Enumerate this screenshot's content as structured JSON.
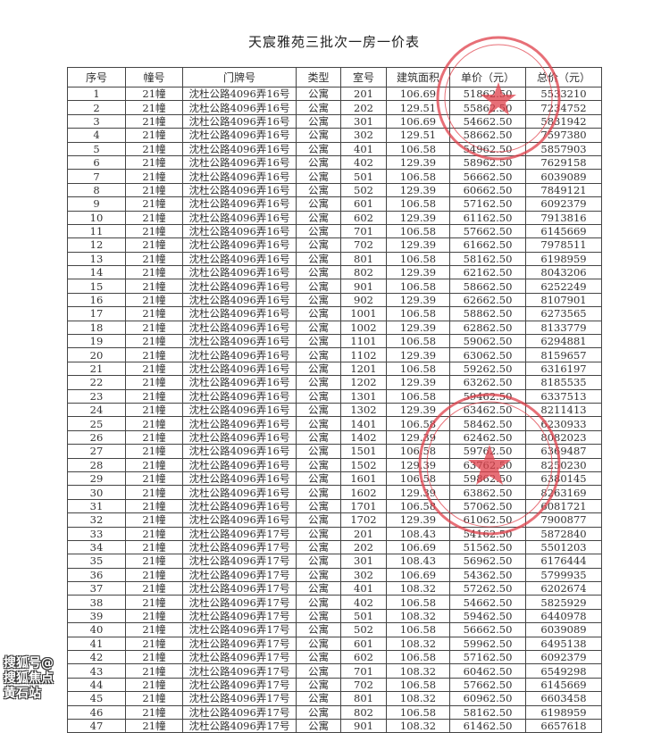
{
  "title": "天宸雅苑三批次一房一价表",
  "columns": [
    "序号",
    "幢号",
    "门牌号",
    "类型",
    "室号",
    "建筑面积",
    "单价（元）",
    "总价（元）"
  ],
  "rows": [
    [
      "1",
      "21幢",
      "沈杜公路4096弄16号",
      "公寓",
      "201",
      "106.69",
      "51862.50",
      "5533210"
    ],
    [
      "2",
      "21幢",
      "沈杜公路4096弄16号",
      "公寓",
      "202",
      "129.51",
      "55862.50",
      "7234752"
    ],
    [
      "3",
      "21幢",
      "沈杜公路4096弄16号",
      "公寓",
      "301",
      "106.69",
      "54662.50",
      "5831942"
    ],
    [
      "4",
      "21幢",
      "沈杜公路4096弄16号",
      "公寓",
      "302",
      "129.51",
      "58662.50",
      "7597380"
    ],
    [
      "5",
      "21幢",
      "沈杜公路4096弄16号",
      "公寓",
      "401",
      "106.58",
      "54962.50",
      "5857903"
    ],
    [
      "6",
      "21幢",
      "沈杜公路4096弄16号",
      "公寓",
      "402",
      "129.39",
      "58962.50",
      "7629158"
    ],
    [
      "7",
      "21幢",
      "沈杜公路4096弄16号",
      "公寓",
      "501",
      "106.58",
      "56662.50",
      "6039089"
    ],
    [
      "8",
      "21幢",
      "沈杜公路4096弄16号",
      "公寓",
      "502",
      "129.39",
      "60662.50",
      "7849121"
    ],
    [
      "9",
      "21幢",
      "沈杜公路4096弄16号",
      "公寓",
      "601",
      "106.58",
      "57162.50",
      "6092379"
    ],
    [
      "10",
      "21幢",
      "沈杜公路4096弄16号",
      "公寓",
      "602",
      "129.39",
      "61162.50",
      "7913816"
    ],
    [
      "11",
      "21幢",
      "沈杜公路4096弄16号",
      "公寓",
      "701",
      "106.58",
      "57662.50",
      "6145669"
    ],
    [
      "12",
      "21幢",
      "沈杜公路4096弄16号",
      "公寓",
      "702",
      "129.39",
      "61662.50",
      "7978511"
    ],
    [
      "13",
      "21幢",
      "沈杜公路4096弄16号",
      "公寓",
      "801",
      "106.58",
      "58162.50",
      "6198959"
    ],
    [
      "14",
      "21幢",
      "沈杜公路4096弄16号",
      "公寓",
      "802",
      "129.39",
      "62162.50",
      "8043206"
    ],
    [
      "15",
      "21幢",
      "沈杜公路4096弄16号",
      "公寓",
      "901",
      "106.58",
      "58662.50",
      "6252249"
    ],
    [
      "16",
      "21幢",
      "沈杜公路4096弄16号",
      "公寓",
      "902",
      "129.39",
      "62662.50",
      "8107901"
    ],
    [
      "17",
      "21幢",
      "沈杜公路4096弄16号",
      "公寓",
      "1001",
      "106.58",
      "58862.50",
      "6273565"
    ],
    [
      "18",
      "21幢",
      "沈杜公路4096弄16号",
      "公寓",
      "1002",
      "129.39",
      "62862.50",
      "8133779"
    ],
    [
      "19",
      "21幢",
      "沈杜公路4096弄16号",
      "公寓",
      "1101",
      "106.58",
      "59062.50",
      "6294881"
    ],
    [
      "20",
      "21幢",
      "沈杜公路4096弄16号",
      "公寓",
      "1102",
      "129.39",
      "63062.50",
      "8159657"
    ],
    [
      "21",
      "21幢",
      "沈杜公路4096弄16号",
      "公寓",
      "1201",
      "106.58",
      "59262.50",
      "6316197"
    ],
    [
      "22",
      "21幢",
      "沈杜公路4096弄16号",
      "公寓",
      "1202",
      "129.39",
      "63262.50",
      "8185535"
    ],
    [
      "23",
      "21幢",
      "沈杜公路4096弄16号",
      "公寓",
      "1301",
      "106.58",
      "59462.50",
      "6337513"
    ],
    [
      "24",
      "21幢",
      "沈杜公路4096弄16号",
      "公寓",
      "1302",
      "129.39",
      "63462.50",
      "8211413"
    ],
    [
      "25",
      "21幢",
      "沈杜公路4096弄16号",
      "公寓",
      "1401",
      "106.58",
      "58462.50",
      "6230933"
    ],
    [
      "26",
      "21幢",
      "沈杜公路4096弄16号",
      "公寓",
      "1402",
      "129.39",
      "62462.50",
      "8082023"
    ],
    [
      "27",
      "21幢",
      "沈杜公路4096弄16号",
      "公寓",
      "1501",
      "106.58",
      "59762.50",
      "6369487"
    ],
    [
      "28",
      "21幢",
      "沈杜公路4096弄16号",
      "公寓",
      "1502",
      "129.39",
      "63762.50",
      "8250230"
    ],
    [
      "29",
      "21幢",
      "沈杜公路4096弄16号",
      "公寓",
      "1601",
      "106.58",
      "59862.50",
      "6380145"
    ],
    [
      "30",
      "21幢",
      "沈杜公路4096弄16号",
      "公寓",
      "1602",
      "129.39",
      "63862.50",
      "8263169"
    ],
    [
      "31",
      "21幢",
      "沈杜公路4096弄16号",
      "公寓",
      "1701",
      "106.58",
      "57062.50",
      "6081721"
    ],
    [
      "32",
      "21幢",
      "沈杜公路4096弄16号",
      "公寓",
      "1702",
      "129.39",
      "61062.50",
      "7900877"
    ],
    [
      "33",
      "21幢",
      "沈杜公路4096弄17号",
      "公寓",
      "201",
      "108.43",
      "54162.50",
      "5872840"
    ],
    [
      "34",
      "21幢",
      "沈杜公路4096弄17号",
      "公寓",
      "202",
      "106.69",
      "51562.50",
      "5501203"
    ],
    [
      "35",
      "21幢",
      "沈杜公路4096弄17号",
      "公寓",
      "301",
      "108.43",
      "56962.50",
      "6176444"
    ],
    [
      "36",
      "21幢",
      "沈杜公路4096弄17号",
      "公寓",
      "302",
      "106.69",
      "54362.50",
      "5799935"
    ],
    [
      "37",
      "21幢",
      "沈杜公路4096弄17号",
      "公寓",
      "401",
      "108.32",
      "57262.50",
      "6202674"
    ],
    [
      "38",
      "21幢",
      "沈杜公路4096弄17号",
      "公寓",
      "402",
      "106.58",
      "54662.50",
      "5825929"
    ],
    [
      "39",
      "21幢",
      "沈杜公路4096弄17号",
      "公寓",
      "501",
      "108.32",
      "59462.50",
      "6440978"
    ],
    [
      "40",
      "21幢",
      "沈杜公路4096弄17号",
      "公寓",
      "502",
      "106.58",
      "56662.50",
      "6039089"
    ],
    [
      "41",
      "21幢",
      "沈杜公路4096弄17号",
      "公寓",
      "601",
      "108.32",
      "59962.50",
      "6495138"
    ],
    [
      "42",
      "21幢",
      "沈杜公路4096弄17号",
      "公寓",
      "602",
      "106.58",
      "57162.50",
      "6092379"
    ],
    [
      "43",
      "21幢",
      "沈杜公路4096弄17号",
      "公寓",
      "701",
      "108.32",
      "60462.50",
      "6549298"
    ],
    [
      "44",
      "21幢",
      "沈杜公路4096弄17号",
      "公寓",
      "702",
      "106.58",
      "57662.50",
      "6145669"
    ],
    [
      "45",
      "21幢",
      "沈杜公路4096弄17号",
      "公寓",
      "801",
      "108.32",
      "60962.50",
      "6603458"
    ],
    [
      "46",
      "21幢",
      "沈杜公路4096弄17号",
      "公寓",
      "802",
      "106.58",
      "58162.50",
      "6198959"
    ],
    [
      "47",
      "21幢",
      "沈杜公路4096弄17号",
      "公寓",
      "901",
      "108.32",
      "61462.50",
      "6657618"
    ]
  ],
  "stamp_color": "#e0404a",
  "watermark": "搜狐号@搜狐焦点黄石站"
}
